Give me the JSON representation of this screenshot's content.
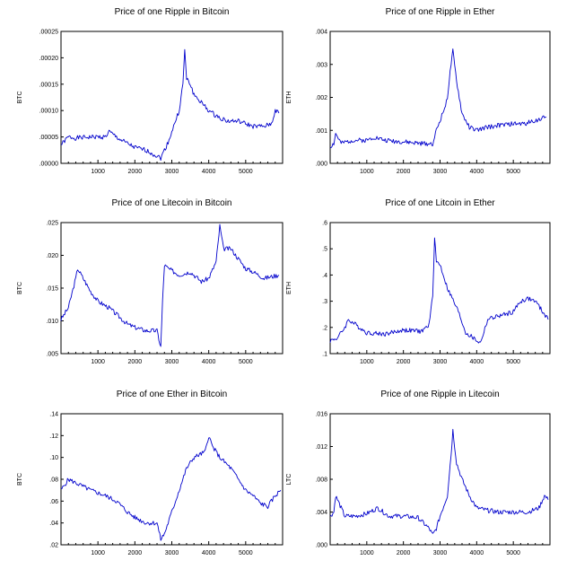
{
  "chart_data": [
    {
      "type": "line",
      "title": "Price of one Ripple in Bitcoin",
      "ylabel": "BTC",
      "xlim": [
        0,
        6000
      ],
      "ylim": [
        0,
        0.00025
      ],
      "xticks": [
        "1000",
        "2000",
        "3000",
        "4000",
        "5000"
      ],
      "yticks": [
        ".00000",
        ".00005",
        ".00010",
        ".00015",
        ".00020",
        ".00025"
      ],
      "color": "#0000cc",
      "x": [
        0,
        200,
        400,
        800,
        1200,
        1300,
        1600,
        2000,
        2300,
        2700,
        2800,
        2900,
        3100,
        3200,
        3300,
        3350,
        3400,
        3500,
        3600,
        3800,
        4000,
        4200,
        4500,
        4800,
        5200,
        5500,
        5700,
        5800,
        5900
      ],
      "values": [
        3.5e-05,
        5e-05,
        4.8e-05,
        5e-05,
        5e-05,
        6e-05,
        4.5e-05,
        3e-05,
        2.5e-05,
        1e-05,
        2.5e-05,
        4e-05,
        8e-05,
        0.0001,
        0.00015,
        0.000215,
        0.00016,
        0.00015,
        0.00013,
        0.000115,
        0.0001,
        9e-05,
        8e-05,
        8e-05,
        7e-05,
        7e-05,
        7.5e-05,
        0.0001,
        9.5e-05
      ]
    },
    {
      "type": "line",
      "title": "Price of one Ripple in Ether",
      "ylabel": "ETH",
      "xlim": [
        0,
        6000
      ],
      "ylim": [
        0,
        0.004
      ],
      "xticks": [
        "1000",
        "2000",
        "3000",
        "4000",
        "5000"
      ],
      "yticks": [
        ".000",
        ".001",
        ".002",
        ".003",
        ".004"
      ],
      "color": "#0000cc",
      "x": [
        0,
        100,
        150,
        300,
        600,
        1000,
        1200,
        1500,
        2000,
        2500,
        2800,
        2900,
        3000,
        3100,
        3200,
        3300,
        3350,
        3450,
        3600,
        3800,
        4000,
        4300,
        4600,
        5000,
        5300,
        5600,
        5900
      ],
      "values": [
        0.0005,
        0.0006,
        0.0009,
        0.0006,
        0.0007,
        0.0007,
        0.0008,
        0.0007,
        0.00065,
        0.0006,
        0.0006,
        0.001,
        0.0013,
        0.0016,
        0.002,
        0.003,
        0.0034,
        0.0025,
        0.0015,
        0.0011,
        0.001,
        0.0011,
        0.00115,
        0.0012,
        0.0012,
        0.0013,
        0.0014
      ]
    },
    {
      "type": "line",
      "title": "Price of one Litecoin in Bitcoin",
      "ylabel": "BTC",
      "xlim": [
        0,
        6000
      ],
      "ylim": [
        0.005,
        0.025
      ],
      "xticks": [
        "1000",
        "2000",
        "3000",
        "4000",
        "5000"
      ],
      "yticks": [
        ".005",
        ".010",
        ".015",
        ".020",
        ".025"
      ],
      "color": "#0000cc",
      "x": [
        0,
        200,
        400,
        450,
        600,
        800,
        1000,
        1300,
        1600,
        1800,
        2000,
        2300,
        2600,
        2700,
        2750,
        2800,
        2900,
        3200,
        3500,
        3800,
        4000,
        4200,
        4300,
        4400,
        4600,
        4800,
        5000,
        5200,
        5500,
        5900
      ],
      "values": [
        0.0102,
        0.012,
        0.0165,
        0.018,
        0.0165,
        0.0145,
        0.013,
        0.012,
        0.0105,
        0.0095,
        0.009,
        0.0085,
        0.0085,
        0.006,
        0.013,
        0.0185,
        0.018,
        0.017,
        0.0175,
        0.016,
        0.0165,
        0.019,
        0.0245,
        0.021,
        0.021,
        0.0195,
        0.018,
        0.0175,
        0.0165,
        0.017
      ]
    },
    {
      "type": "line",
      "title": "Price of one Litcoin in Ether",
      "ylabel": "ETH",
      "xlim": [
        0,
        6000
      ],
      "ylim": [
        0.1,
        0.6
      ],
      "xticks": [
        "1000",
        "2000",
        "3000",
        "4000",
        "5000"
      ],
      "yticks": [
        ".1",
        ".2",
        ".3",
        ".4",
        ".5",
        ".6"
      ],
      "color": "#0000cc",
      "x": [
        0,
        200,
        400,
        500,
        800,
        1000,
        1500,
        2000,
        2500,
        2700,
        2800,
        2850,
        2900,
        3000,
        3200,
        3500,
        3700,
        4000,
        4100,
        4300,
        4500,
        4800,
        5000,
        5200,
        5400,
        5600,
        5800,
        5950
      ],
      "values": [
        0.15,
        0.16,
        0.2,
        0.23,
        0.2,
        0.18,
        0.175,
        0.19,
        0.185,
        0.21,
        0.32,
        0.55,
        0.45,
        0.44,
        0.35,
        0.26,
        0.18,
        0.15,
        0.14,
        0.23,
        0.24,
        0.25,
        0.26,
        0.3,
        0.31,
        0.3,
        0.26,
        0.23
      ]
    },
    {
      "type": "line",
      "title": "Price of one Ether in Bitcoin",
      "ylabel": "BTC",
      "xlim": [
        0,
        6000
      ],
      "ylim": [
        0.02,
        0.14
      ],
      "xticks": [
        "1000",
        "2000",
        "3000",
        "4000",
        "5000"
      ],
      "yticks": [
        ".02",
        ".04",
        ".06",
        ".08",
        ".10",
        ".12",
        ".14"
      ],
      "color": "#0000cc",
      "x": [
        0,
        200,
        500,
        800,
        1200,
        1500,
        1800,
        2000,
        2300,
        2600,
        2700,
        2800,
        3000,
        3200,
        3400,
        3600,
        3900,
        4000,
        4100,
        4300,
        4600,
        4800,
        5000,
        5200,
        5400,
        5600,
        5800,
        5950
      ],
      "values": [
        0.07,
        0.08,
        0.075,
        0.07,
        0.065,
        0.06,
        0.05,
        0.045,
        0.04,
        0.04,
        0.025,
        0.03,
        0.05,
        0.07,
        0.09,
        0.1,
        0.105,
        0.12,
        0.11,
        0.1,
        0.09,
        0.08,
        0.07,
        0.065,
        0.058,
        0.055,
        0.065,
        0.07
      ]
    },
    {
      "type": "line",
      "title": "Price of one Ripple in Litecoin",
      "ylabel": "LTC",
      "xlim": [
        0,
        6000
      ],
      "ylim": [
        0,
        0.016
      ],
      "xticks": [
        "1000",
        "2000",
        "3000",
        "4000",
        "5000"
      ],
      "yticks": [
        ".000",
        ".004",
        ".008",
        ".012",
        ".016"
      ],
      "color": "#0000cc",
      "x": [
        0,
        100,
        150,
        400,
        700,
        1000,
        1300,
        1600,
        2000,
        2400,
        2700,
        2800,
        2900,
        3000,
        3200,
        3300,
        3350,
        3450,
        3600,
        3800,
        4000,
        4300,
        4600,
        5000,
        5400,
        5700,
        5850,
        5950
      ],
      "values": [
        0.0035,
        0.004,
        0.006,
        0.0035,
        0.0035,
        0.0038,
        0.0045,
        0.0035,
        0.0035,
        0.0033,
        0.002,
        0.0012,
        0.002,
        0.0035,
        0.006,
        0.011,
        0.014,
        0.01,
        0.008,
        0.006,
        0.0045,
        0.0042,
        0.004,
        0.004,
        0.004,
        0.0045,
        0.006,
        0.0055
      ]
    }
  ]
}
